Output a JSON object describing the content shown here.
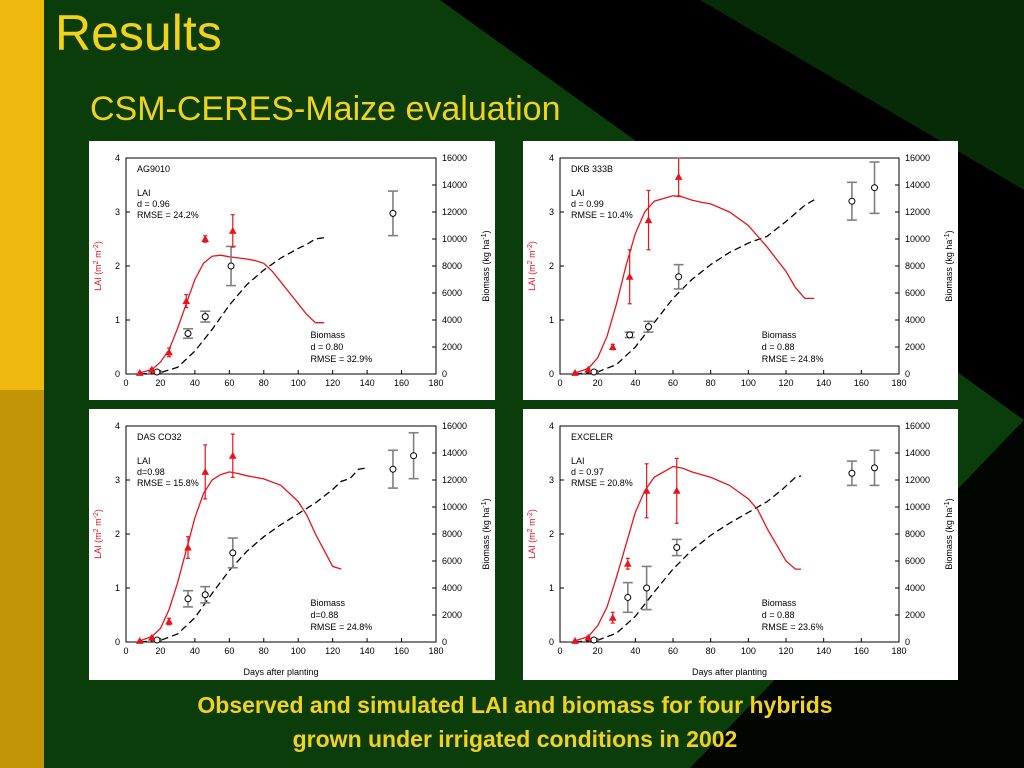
{
  "slide": {
    "title": "Results",
    "subtitle": "CSM-CERES-Maize evaluation",
    "caption_line1": "Observed and simulated LAI and biomass for four hybrids",
    "caption_line2": "grown under irrigated conditions in 2002"
  },
  "colors": {
    "lai": "#e8141b",
    "biomass": "#000000",
    "obs_biomass": "#808080",
    "title": "#f2d21b"
  },
  "chart_data": [
    {
      "type": "line",
      "hybrid": "AG9010",
      "lai_stats": [
        "LAI",
        "d = 0.96",
        "RMSE = 24.2%"
      ],
      "biomass_stats": [
        "Biomass",
        "d = 0.80",
        "RMSE = 32.9%"
      ],
      "ylabel_left": "LAI (m2 m-2)",
      "ylabel_right": "Biomass (kg ha-1)",
      "xlabel": "",
      "xlim": [
        0,
        180
      ],
      "xticks": [
        0,
        20,
        40,
        60,
        80,
        100,
        120,
        140,
        160,
        180
      ],
      "ylim_left": [
        0,
        4
      ],
      "yticks_left": [
        0,
        1,
        2,
        3,
        4
      ],
      "ylim_right": [
        0,
        16000
      ],
      "yticks_right": [
        0,
        2000,
        4000,
        6000,
        8000,
        10000,
        12000,
        14000,
        16000
      ],
      "sim_lai": [
        [
          8,
          0.02
        ],
        [
          15,
          0.08
        ],
        [
          20,
          0.22
        ],
        [
          25,
          0.45
        ],
        [
          30,
          0.85
        ],
        [
          35,
          1.3
        ],
        [
          40,
          1.75
        ],
        [
          45,
          2.05
        ],
        [
          50,
          2.18
        ],
        [
          55,
          2.2
        ],
        [
          60,
          2.17
        ],
        [
          65,
          2.15
        ],
        [
          70,
          2.13
        ],
        [
          75,
          2.1
        ],
        [
          80,
          2.05
        ],
        [
          85,
          1.9
        ],
        [
          90,
          1.7
        ],
        [
          95,
          1.5
        ],
        [
          100,
          1.3
        ],
        [
          105,
          1.1
        ],
        [
          110,
          0.95
        ],
        [
          115,
          0.95
        ]
      ],
      "sim_biomass": [
        [
          8,
          0
        ],
        [
          20,
          100
        ],
        [
          30,
          500
        ],
        [
          40,
          1700
        ],
        [
          50,
          3300
        ],
        [
          60,
          5100
        ],
        [
          70,
          6600
        ],
        [
          80,
          7700
        ],
        [
          90,
          8600
        ],
        [
          100,
          9300
        ],
        [
          105,
          9600
        ],
        [
          110,
          10000
        ],
        [
          115,
          10100
        ]
      ],
      "obs_lai": [
        {
          "x": 8,
          "y": 0.02,
          "err": 0.01
        },
        {
          "x": 15,
          "y": 0.08,
          "err": 0.02
        },
        {
          "x": 25,
          "y": 0.4,
          "err": 0.08
        },
        {
          "x": 35,
          "y": 1.35,
          "err": 0.12
        },
        {
          "x": 46,
          "y": 2.5,
          "err": 0.06
        },
        {
          "x": 62,
          "y": 2.65,
          "err": 0.3
        }
      ],
      "obs_biomass": [
        {
          "x": 18,
          "y": 150,
          "err": 50
        },
        {
          "x": 36,
          "y": 3000,
          "err": 350
        },
        {
          "x": 46,
          "y": 4250,
          "err": 400
        },
        {
          "x": 61,
          "y": 8000,
          "err": 1450
        },
        {
          "x": 155,
          "y": 11900,
          "err": 1650
        }
      ]
    },
    {
      "type": "line",
      "hybrid": "DKB 333B",
      "lai_stats": [
        "LAI",
        "d = 0.99",
        "RMSE = 10.4%"
      ],
      "biomass_stats": [
        "Biomass",
        "d = 0.88",
        "RMSE = 24.8%"
      ],
      "ylabel_left": "LAI (m2 m-2)",
      "ylabel_right": "Biomass (kg ha-1)",
      "xlabel": "",
      "xlim": [
        0,
        180
      ],
      "xticks": [
        0,
        20,
        40,
        60,
        80,
        100,
        120,
        140,
        160,
        180
      ],
      "ylim_left": [
        0,
        4
      ],
      "yticks_left": [
        0,
        1,
        2,
        3,
        4
      ],
      "ylim_right": [
        0,
        16000
      ],
      "yticks_right": [
        0,
        2000,
        4000,
        6000,
        8000,
        10000,
        12000,
        14000,
        16000
      ],
      "sim_lai": [
        [
          8,
          0.02
        ],
        [
          15,
          0.1
        ],
        [
          20,
          0.3
        ],
        [
          25,
          0.7
        ],
        [
          30,
          1.3
        ],
        [
          35,
          2.0
        ],
        [
          40,
          2.6
        ],
        [
          45,
          3.0
        ],
        [
          50,
          3.2
        ],
        [
          55,
          3.25
        ],
        [
          60,
          3.3
        ],
        [
          65,
          3.28
        ],
        [
          70,
          3.22
        ],
        [
          75,
          3.18
        ],
        [
          80,
          3.15
        ],
        [
          90,
          3.0
        ],
        [
          100,
          2.75
        ],
        [
          110,
          2.35
        ],
        [
          120,
          1.9
        ],
        [
          125,
          1.6
        ],
        [
          130,
          1.4
        ],
        [
          135,
          1.4
        ]
      ],
      "sim_biomass": [
        [
          8,
          0
        ],
        [
          20,
          150
        ],
        [
          30,
          700
        ],
        [
          40,
          2000
        ],
        [
          50,
          3800
        ],
        [
          60,
          5600
        ],
        [
          70,
          7000
        ],
        [
          80,
          8100
        ],
        [
          90,
          9000
        ],
        [
          100,
          9700
        ],
        [
          110,
          10200
        ],
        [
          120,
          11300
        ],
        [
          130,
          12500
        ],
        [
          135,
          12900
        ]
      ],
      "obs_lai": [
        {
          "x": 8,
          "y": 0.02,
          "err": 0.01
        },
        {
          "x": 15,
          "y": 0.08,
          "err": 0.02
        },
        {
          "x": 28,
          "y": 0.5,
          "err": 0.05
        },
        {
          "x": 37,
          "y": 1.8,
          "err": 0.5
        },
        {
          "x": 47,
          "y": 2.85,
          "err": 0.55
        },
        {
          "x": 63,
          "y": 3.65,
          "err": 0.35
        }
      ],
      "obs_biomass": [
        {
          "x": 18,
          "y": 150,
          "err": 50
        },
        {
          "x": 37,
          "y": 2900,
          "err": 200
        },
        {
          "x": 47,
          "y": 3500,
          "err": 400
        },
        {
          "x": 63,
          "y": 7200,
          "err": 900
        },
        {
          "x": 155,
          "y": 12800,
          "err": 1400
        },
        {
          "x": 167,
          "y": 13800,
          "err": 1900
        }
      ]
    },
    {
      "type": "line",
      "hybrid": "DAS CO32",
      "lai_stats": [
        "LAI",
        "d=0.98",
        "RMSE = 15.8%"
      ],
      "biomass_stats": [
        "Biomass",
        "d=0.88",
        "RMSE = 24.8%"
      ],
      "ylabel_left": "LAI (m2 m-2)",
      "ylabel_right": "Biomass (kg ha-1)",
      "xlabel": "Days after planting",
      "xlim": [
        0,
        180
      ],
      "xticks": [
        0,
        20,
        40,
        60,
        80,
        100,
        120,
        140,
        160,
        180
      ],
      "ylim_left": [
        0,
        4
      ],
      "yticks_left": [
        0,
        1,
        2,
        3,
        4
      ],
      "ylim_right": [
        0,
        16000
      ],
      "yticks_right": [
        0,
        2000,
        4000,
        6000,
        8000,
        10000,
        12000,
        14000,
        16000
      ],
      "sim_lai": [
        [
          8,
          0.02
        ],
        [
          15,
          0.1
        ],
        [
          20,
          0.25
        ],
        [
          25,
          0.6
        ],
        [
          30,
          1.1
        ],
        [
          35,
          1.7
        ],
        [
          40,
          2.3
        ],
        [
          45,
          2.75
        ],
        [
          50,
          3.0
        ],
        [
          55,
          3.1
        ],
        [
          60,
          3.15
        ],
        [
          65,
          3.12
        ],
        [
          70,
          3.08
        ],
        [
          75,
          3.05
        ],
        [
          80,
          3.02
        ],
        [
          90,
          2.9
        ],
        [
          100,
          2.6
        ],
        [
          105,
          2.35
        ],
        [
          110,
          2.0
        ],
        [
          115,
          1.7
        ],
        [
          120,
          1.4
        ],
        [
          125,
          1.35
        ]
      ],
      "sim_biomass": [
        [
          8,
          0
        ],
        [
          20,
          120
        ],
        [
          30,
          600
        ],
        [
          40,
          1800
        ],
        [
          50,
          3600
        ],
        [
          60,
          5300
        ],
        [
          70,
          6700
        ],
        [
          80,
          7800
        ],
        [
          90,
          8700
        ],
        [
          100,
          9500
        ],
        [
          110,
          10300
        ],
        [
          120,
          11300
        ],
        [
          125,
          11900
        ],
        [
          130,
          12100
        ],
        [
          135,
          12800
        ],
        [
          140,
          12900
        ]
      ],
      "obs_lai": [
        {
          "x": 8,
          "y": 0.02,
          "err": 0.01
        },
        {
          "x": 15,
          "y": 0.08,
          "err": 0.02
        },
        {
          "x": 25,
          "y": 0.38,
          "err": 0.06
        },
        {
          "x": 36,
          "y": 1.75,
          "err": 0.2
        },
        {
          "x": 46,
          "y": 3.15,
          "err": 0.5
        },
        {
          "x": 62,
          "y": 3.45,
          "err": 0.4
        }
      ],
      "obs_biomass": [
        {
          "x": 18,
          "y": 150,
          "err": 50
        },
        {
          "x": 36,
          "y": 3200,
          "err": 600
        },
        {
          "x": 46,
          "y": 3500,
          "err": 600
        },
        {
          "x": 62,
          "y": 6600,
          "err": 1100
        },
        {
          "x": 155,
          "y": 12800,
          "err": 1400
        },
        {
          "x": 167,
          "y": 13800,
          "err": 1700
        }
      ]
    },
    {
      "type": "line",
      "hybrid": "EXCELER",
      "lai_stats": [
        "LAI",
        "d = 0.97",
        "RMSE = 20.8%"
      ],
      "biomass_stats": [
        "Biomass",
        "d = 0.88",
        "RMSE = 23.6%"
      ],
      "ylabel_left": "LAI (m2 m-2)",
      "ylabel_right": "Biomass (kg ha-1)",
      "xlabel": "Days after planting",
      "xlim": [
        0,
        180
      ],
      "xticks": [
        0,
        20,
        40,
        60,
        80,
        100,
        120,
        140,
        160,
        180
      ],
      "ylim_left": [
        0,
        4
      ],
      "yticks_left": [
        0,
        1,
        2,
        3,
        4
      ],
      "ylim_right": [
        0,
        16000
      ],
      "yticks_right": [
        0,
        2000,
        4000,
        6000,
        8000,
        10000,
        12000,
        14000,
        16000
      ],
      "sim_lai": [
        [
          8,
          0.02
        ],
        [
          15,
          0.1
        ],
        [
          20,
          0.3
        ],
        [
          25,
          0.65
        ],
        [
          30,
          1.2
        ],
        [
          35,
          1.8
        ],
        [
          40,
          2.4
        ],
        [
          45,
          2.8
        ],
        [
          50,
          3.05
        ],
        [
          55,
          3.15
        ],
        [
          60,
          3.25
        ],
        [
          65,
          3.22
        ],
        [
          70,
          3.15
        ],
        [
          75,
          3.1
        ],
        [
          80,
          3.05
        ],
        [
          90,
          2.9
        ],
        [
          100,
          2.65
        ],
        [
          105,
          2.45
        ],
        [
          110,
          2.1
        ],
        [
          115,
          1.8
        ],
        [
          120,
          1.5
        ],
        [
          125,
          1.35
        ],
        [
          128,
          1.35
        ]
      ],
      "sim_biomass": [
        [
          8,
          0
        ],
        [
          20,
          130
        ],
        [
          30,
          650
        ],
        [
          40,
          1900
        ],
        [
          50,
          3700
        ],
        [
          60,
          5400
        ],
        [
          70,
          6800
        ],
        [
          80,
          7900
        ],
        [
          90,
          8800
        ],
        [
          100,
          9600
        ],
        [
          110,
          10400
        ],
        [
          118,
          11300
        ],
        [
          125,
          12200
        ],
        [
          128,
          12300
        ]
      ],
      "obs_lai": [
        {
          "x": 8,
          "y": 0.02,
          "err": 0.01
        },
        {
          "x": 15,
          "y": 0.08,
          "err": 0.02
        },
        {
          "x": 28,
          "y": 0.45,
          "err": 0.1
        },
        {
          "x": 36,
          "y": 1.45,
          "err": 0.1
        },
        {
          "x": 46,
          "y": 2.8,
          "err": 0.5
        },
        {
          "x": 62,
          "y": 2.8,
          "err": 0.6
        }
      ],
      "obs_biomass": [
        {
          "x": 18,
          "y": 150,
          "err": 50
        },
        {
          "x": 36,
          "y": 3300,
          "err": 1100
        },
        {
          "x": 46,
          "y": 4000,
          "err": 1600
        },
        {
          "x": 62,
          "y": 7000,
          "err": 600
        },
        {
          "x": 155,
          "y": 12500,
          "err": 900
        },
        {
          "x": 167,
          "y": 12900,
          "err": 1300
        }
      ]
    }
  ]
}
